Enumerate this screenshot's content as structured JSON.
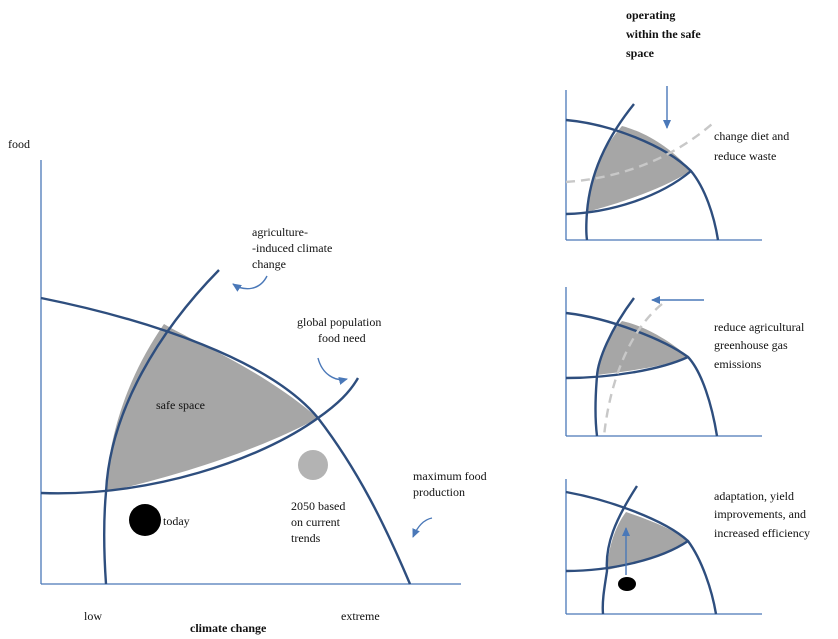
{
  "main_diagram": {
    "y_axis_label": "food",
    "x_axis_label": "climate change",
    "x_tick_low": "low",
    "x_tick_high": "extreme",
    "labels": {
      "agriculture_line1": "agriculture-",
      "agriculture_line2": "-induced climate",
      "agriculture_line3": "change",
      "population_line1": "global population",
      "population_line2": "food need",
      "safe_space": "safe space",
      "maxfood_line1": "maximum food",
      "maxfood_line2": "production",
      "future_line1": "2050 based",
      "future_line2": "on current",
      "future_line3": "trends",
      "today": "today"
    }
  },
  "panels": {
    "heading_line1": "operating",
    "heading_line2": "within the safe",
    "heading_line3": "space",
    "panel1_line1": "change diet and",
    "panel1_line2": "reduce waste",
    "panel2_line1": "reduce agricultural",
    "panel2_line2": "greenhouse gas",
    "panel2_line3": "emissions",
    "panel3_line1": "adaptation, yield",
    "panel3_line2": "improvements, and",
    "panel3_line3": "increased efficiency"
  },
  "colors": {
    "axis": "#4a78b8",
    "curve": "#2e4e7e",
    "safe_space_fill": "#a6a6a6",
    "dashed_line": "#c8c8c8",
    "today_marker": "#000000",
    "future_marker": "#b3b3b3"
  }
}
